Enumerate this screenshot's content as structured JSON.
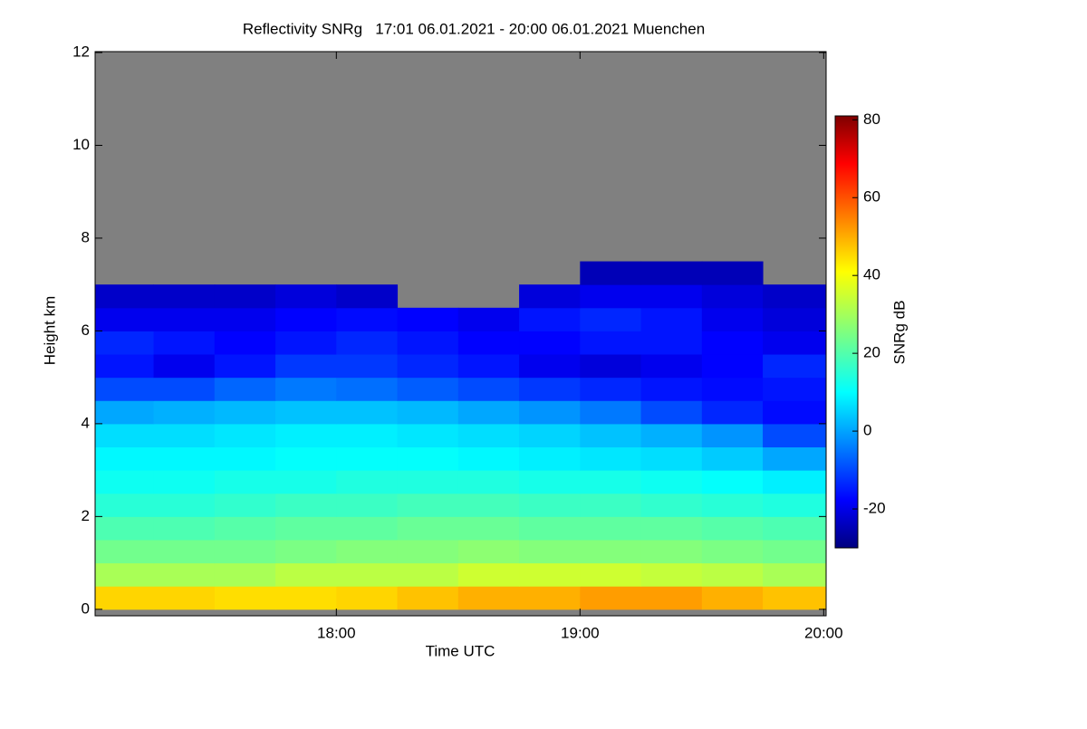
{
  "chart_data": {
    "type": "heatmap",
    "title": "Reflectivity SNRg   17:01 06.01.2021 - 20:00 06.01.2021 Muenchen",
    "x_label": "Time UTC",
    "y_label": "Height km",
    "colorbar_label": "SNRg dB",
    "x_edges": [
      17.01,
      17.25,
      17.5,
      17.75,
      18,
      18.25,
      18.5,
      18.75,
      19,
      19.25,
      19.5,
      19.75,
      20.01
    ],
    "y_edges": [
      0,
      0.5,
      1,
      1.5,
      2,
      2.5,
      3,
      3.5,
      4,
      4.5,
      5,
      5.5,
      6,
      6.5,
      7,
      7.5
    ],
    "z": [
      [
        44,
        44,
        43,
        43,
        44,
        46,
        48,
        48,
        50,
        50,
        48,
        46
      ],
      [
        30,
        30,
        30,
        32,
        32,
        32,
        34,
        34,
        34,
        33,
        32,
        30
      ],
      [
        24,
        24,
        24,
        25,
        26,
        26,
        27,
        26,
        26,
        26,
        25,
        24
      ],
      [
        20,
        20,
        21,
        22,
        22,
        23,
        23,
        22,
        22,
        22,
        21,
        20
      ],
      [
        16,
        16,
        17,
        18,
        18,
        19,
        19,
        18,
        18,
        17,
        16,
        15
      ],
      [
        13,
        13,
        14,
        14,
        15,
        15,
        15,
        14,
        14,
        13,
        12,
        10
      ],
      [
        11,
        11,
        11,
        12,
        12,
        12,
        11,
        10,
        9,
        8,
        6,
        2
      ],
      [
        8,
        8,
        9,
        10,
        10,
        9,
        8,
        7,
        5,
        3,
        0,
        -8
      ],
      [
        2,
        3,
        4,
        5,
        5,
        4,
        2,
        0,
        -3,
        -8,
        -12,
        -15
      ],
      [
        -8,
        -8,
        -5,
        -3,
        -4,
        -6,
        -8,
        -10,
        -12,
        -14,
        -15,
        -14
      ],
      [
        -14,
        -18,
        -14,
        -10,
        -10,
        -12,
        -14,
        -18,
        -20,
        -18,
        -16,
        -12
      ],
      [
        -12,
        -14,
        -16,
        -14,
        -12,
        -14,
        -16,
        -16,
        -14,
        -14,
        -16,
        -18
      ],
      [
        -18,
        -18,
        -18,
        -16,
        -15,
        -16,
        -18,
        -14,
        -12,
        -14,
        -18,
        -20
      ],
      [
        -22,
        -22,
        -22,
        -20,
        -22,
        null,
        null,
        -20,
        -18,
        -18,
        -20,
        -22
      ],
      [
        null,
        null,
        null,
        null,
        null,
        null,
        null,
        null,
        -24,
        -24,
        -24,
        null
      ]
    ],
    "xlim": [
      17.01,
      20.01
    ],
    "xticks": [
      {
        "value": 18,
        "label": "18:00"
      },
      {
        "value": 19,
        "label": "19:00"
      },
      {
        "value": 20,
        "label": "20:00"
      }
    ],
    "ylim": [
      -0.14,
      12.02
    ],
    "yticks": [
      0,
      2,
      4,
      6,
      8,
      10,
      12
    ],
    "clim": [
      -30,
      81
    ],
    "cticks": [
      -20,
      0,
      20,
      40,
      60,
      80
    ],
    "colormap": "jet",
    "background": "#808080"
  }
}
